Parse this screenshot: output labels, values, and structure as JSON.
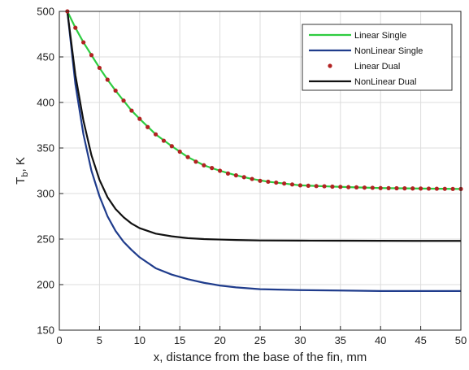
{
  "chart_data": {
    "type": "line",
    "xlabel": "x, distance from the base of the fin, mm",
    "ylabel_main": "T",
    "ylabel_sub": "b",
    "ylabel_rest": ", K",
    "xlim": [
      0,
      50
    ],
    "ylim": [
      150,
      500
    ],
    "x_ticks": [
      "0",
      "5",
      "10",
      "15",
      "20",
      "25",
      "30",
      "35",
      "40",
      "45",
      "50"
    ],
    "y_ticks": [
      "150",
      "200",
      "250",
      "300",
      "350",
      "400",
      "450",
      "500"
    ],
    "grid": true,
    "legend_position": "top-right",
    "series": [
      {
        "name": "Linear Single",
        "color": "#2ecc40",
        "style": "line",
        "x": [
          1,
          2,
          3,
          4,
          5,
          6,
          7,
          8,
          9,
          10,
          12,
          14,
          16,
          18,
          20,
          22,
          24,
          26,
          28,
          30,
          33,
          36,
          40,
          45,
          50
        ],
        "values": [
          500,
          482,
          466,
          452,
          438,
          425,
          413,
          402,
          391,
          382,
          365,
          352,
          340,
          331,
          325,
          320,
          316,
          313,
          311,
          309,
          308,
          307,
          306,
          305.5,
          305
        ]
      },
      {
        "name": "NonLinear Single",
        "color": "#1f3c8c",
        "style": "line",
        "x": [
          1,
          2,
          3,
          4,
          5,
          6,
          7,
          8,
          9,
          10,
          12,
          14,
          16,
          18,
          20,
          22,
          25,
          30,
          35,
          40,
          45,
          50
        ],
        "values": [
          500,
          420,
          365,
          325,
          297,
          275,
          259,
          247,
          238,
          230,
          218,
          211,
          206,
          202,
          199,
          197,
          195,
          194,
          193.5,
          193,
          193,
          193
        ]
      },
      {
        "name": "Linear Dual",
        "color": "#b22222",
        "style": "dots",
        "x": [
          1,
          2,
          3,
          4,
          5,
          6,
          7,
          8,
          9,
          10,
          11,
          12,
          13,
          14,
          15,
          16,
          17,
          18,
          19,
          20,
          21,
          22,
          23,
          24,
          25,
          26,
          27,
          28,
          29,
          30,
          31,
          32,
          33,
          34,
          35,
          36,
          37,
          38,
          39,
          40,
          41,
          42,
          43,
          44,
          45,
          46,
          47,
          48,
          49,
          50
        ],
        "values": [
          500,
          482,
          466,
          452,
          438,
          425,
          413,
          402,
          391,
          382,
          373,
          365,
          358,
          352,
          346,
          340,
          335,
          331,
          328,
          325,
          322,
          320,
          318,
          316,
          314,
          313,
          312,
          311,
          310,
          309,
          308.6,
          308.2,
          308,
          307.6,
          307.3,
          307,
          306.8,
          306.5,
          306.3,
          306,
          305.9,
          305.8,
          305.7,
          305.6,
          305.5,
          305.4,
          305.3,
          305.2,
          305.1,
          305
        ]
      },
      {
        "name": "NonLinear Dual",
        "color": "#111111",
        "style": "line",
        "x": [
          1,
          2,
          3,
          4,
          5,
          6,
          7,
          8,
          9,
          10,
          12,
          14,
          16,
          18,
          20,
          22,
          25,
          30,
          35,
          40,
          45,
          50
        ],
        "values": [
          500,
          430,
          380,
          342,
          315,
          296,
          283,
          274,
          267,
          262,
          256,
          253,
          251,
          250,
          249.5,
          249,
          248.5,
          248.3,
          248.2,
          248.1,
          248,
          248
        ]
      }
    ]
  }
}
